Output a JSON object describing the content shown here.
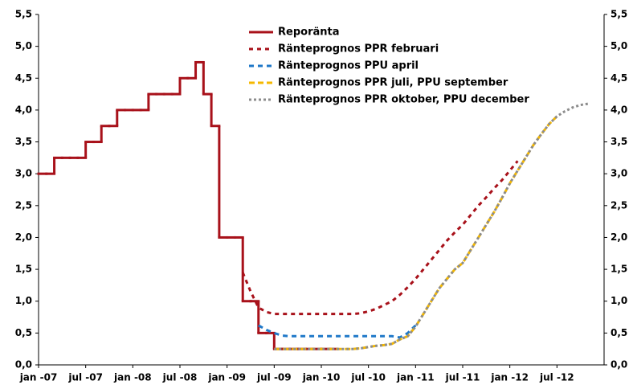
{
  "chart_data": {
    "type": "line",
    "step_first_series": true,
    "categories": [
      "jan -07",
      null,
      null,
      null,
      null,
      null,
      "jul -07",
      null,
      null,
      null,
      null,
      null,
      "jan -08",
      null,
      null,
      null,
      null,
      null,
      "jul -08",
      null,
      null,
      null,
      null,
      null,
      "jan -09",
      null,
      null,
      null,
      null,
      null,
      "jul -09",
      null,
      null,
      null,
      null,
      null,
      "jan -10",
      null,
      null,
      null,
      null,
      null,
      "jul -10",
      null,
      null,
      null,
      null,
      null,
      "jan -11",
      null,
      null,
      null,
      null,
      null,
      "jul -11",
      null,
      null,
      null,
      null,
      null,
      "jan -12",
      null,
      null,
      null,
      null,
      null,
      "jul -12",
      null,
      null,
      null,
      null,
      null
    ],
    "series": [
      {
        "name": "Reporänta",
        "color": "#a8111a",
        "dash": "none",
        "values": [
          3.0,
          3.0,
          3.25,
          3.25,
          3.25,
          3.25,
          3.5,
          3.5,
          3.75,
          3.75,
          4.0,
          4.0,
          4.0,
          4.0,
          4.25,
          4.25,
          4.25,
          4.25,
          4.5,
          4.5,
          4.75,
          4.25,
          3.75,
          2.0,
          2.0,
          2.0,
          1.0,
          1.0,
          0.5,
          0.5,
          0.25,
          0.25,
          0.25,
          0.25,
          0.25,
          0.25,
          0.25,
          0.25,
          null,
          null,
          null,
          null,
          null,
          null,
          null,
          null,
          null,
          null,
          null,
          null,
          null,
          null,
          null,
          null,
          null,
          null,
          null,
          null,
          null,
          null,
          null,
          null,
          null,
          null,
          null,
          null,
          null,
          null,
          null,
          null,
          null,
          null
        ]
      },
      {
        "name": "Ränteprognos PPR februari",
        "color": "#a8111a",
        "dash": "5 5",
        "values": [
          null,
          null,
          null,
          null,
          null,
          null,
          null,
          null,
          null,
          null,
          null,
          null,
          null,
          null,
          null,
          null,
          null,
          null,
          null,
          null,
          null,
          null,
          null,
          null,
          null,
          null,
          1.45,
          1.15,
          0.9,
          0.83,
          0.8,
          0.8,
          0.8,
          0.8,
          0.8,
          0.8,
          0.8,
          0.8,
          0.8,
          0.8,
          0.8,
          0.81,
          0.84,
          0.88,
          0.94,
          1.0,
          1.1,
          1.22,
          1.35,
          1.5,
          1.65,
          1.8,
          1.95,
          2.08,
          2.2,
          2.35,
          2.5,
          2.63,
          2.77,
          2.9,
          3.05,
          3.2,
          null,
          null,
          null,
          null,
          null,
          null,
          null,
          null,
          null,
          null
        ]
      },
      {
        "name": "Ränteprognos PPU april",
        "color": "#1f78c8",
        "dash": "6 5",
        "values": [
          null,
          null,
          null,
          null,
          null,
          null,
          null,
          null,
          null,
          null,
          null,
          null,
          null,
          null,
          null,
          null,
          null,
          null,
          null,
          null,
          null,
          null,
          null,
          null,
          null,
          null,
          null,
          null,
          0.62,
          0.55,
          0.5,
          0.46,
          0.45,
          0.45,
          0.45,
          0.45,
          0.45,
          0.45,
          0.45,
          0.45,
          0.45,
          0.45,
          0.45,
          0.45,
          0.45,
          0.45,
          0.43,
          0.5,
          0.62,
          null,
          null,
          null,
          null,
          null,
          null,
          null,
          null,
          null,
          null,
          null,
          null,
          null,
          null,
          null,
          null,
          null,
          null,
          null,
          null,
          null,
          null,
          null
        ]
      },
      {
        "name": "Ränteprognos PPR juli, PPU september",
        "color": "#f5b800",
        "dash": "7 4",
        "values": [
          null,
          null,
          null,
          null,
          null,
          null,
          null,
          null,
          null,
          null,
          null,
          null,
          null,
          null,
          null,
          null,
          null,
          null,
          null,
          null,
          null,
          null,
          null,
          null,
          null,
          null,
          null,
          null,
          null,
          null,
          0.25,
          0.25,
          0.25,
          0.25,
          0.25,
          0.25,
          0.25,
          0.25,
          0.25,
          0.25,
          0.25,
          0.26,
          0.28,
          0.3,
          0.31,
          0.33,
          0.4,
          0.45,
          0.6,
          0.8,
          1.0,
          1.2,
          1.35,
          1.5,
          1.6,
          1.8,
          2.0,
          2.2,
          2.4,
          2.62,
          2.85,
          3.05,
          3.25,
          3.45,
          3.62,
          3.78,
          3.9,
          null,
          null,
          null,
          null,
          null
        ]
      },
      {
        "name": "Ränteprognos PPR oktober, PPU december",
        "color": "#8c8c8c",
        "dash": "3 3",
        "values": [
          null,
          null,
          null,
          null,
          null,
          null,
          null,
          null,
          null,
          null,
          null,
          null,
          null,
          null,
          null,
          null,
          null,
          null,
          null,
          null,
          null,
          null,
          null,
          null,
          null,
          null,
          null,
          null,
          null,
          null,
          0.25,
          0.25,
          0.25,
          0.25,
          0.25,
          0.25,
          0.25,
          0.25,
          0.25,
          0.25,
          0.25,
          0.26,
          0.28,
          0.3,
          0.31,
          0.33,
          0.4,
          0.45,
          0.6,
          0.8,
          1.0,
          1.2,
          1.35,
          1.5,
          1.6,
          1.8,
          2.0,
          2.2,
          2.4,
          2.62,
          2.85,
          3.05,
          3.25,
          3.45,
          3.62,
          3.78,
          3.9,
          3.98,
          4.04,
          4.08,
          4.1,
          null
        ]
      }
    ],
    "ylim": [
      0,
      5.5
    ],
    "yticks": [
      {
        "value": 0,
        "label": "0,0"
      },
      {
        "value": 0.5,
        "label": "0,5"
      },
      {
        "value": 1,
        "label": "1,0"
      },
      {
        "value": 1.5,
        "label": "1,5"
      },
      {
        "value": 2,
        "label": "2,0"
      },
      {
        "value": 2.5,
        "label": "2,5"
      },
      {
        "value": 3,
        "label": "3,0"
      },
      {
        "value": 3.5,
        "label": "3,5"
      },
      {
        "value": 4,
        "label": "4,0"
      },
      {
        "value": 4.5,
        "label": "4,5"
      },
      {
        "value": 5,
        "label": "5,0"
      },
      {
        "value": 5.5,
        "label": "5,5"
      }
    ],
    "y2lim": [
      0,
      5.5
    ],
    "y2ticks": [
      {
        "value": 0,
        "label": "0,0"
      },
      {
        "value": 0.5,
        "label": "0,5"
      },
      {
        "value": 1,
        "label": "1,0"
      },
      {
        "value": 1.5,
        "label": "1,5"
      },
      {
        "value": 2,
        "label": "2,0"
      },
      {
        "value": 2.5,
        "label": "2,5"
      },
      {
        "value": 3,
        "label": "3,0"
      },
      {
        "value": 3.5,
        "label": "3,5"
      },
      {
        "value": 4,
        "label": "4,0"
      },
      {
        "value": 4.5,
        "label": "4,5"
      },
      {
        "value": 5,
        "label": "5,0"
      },
      {
        "value": 5.5,
        "label": "5,5"
      }
    ],
    "grid": false,
    "legend": "top"
  }
}
